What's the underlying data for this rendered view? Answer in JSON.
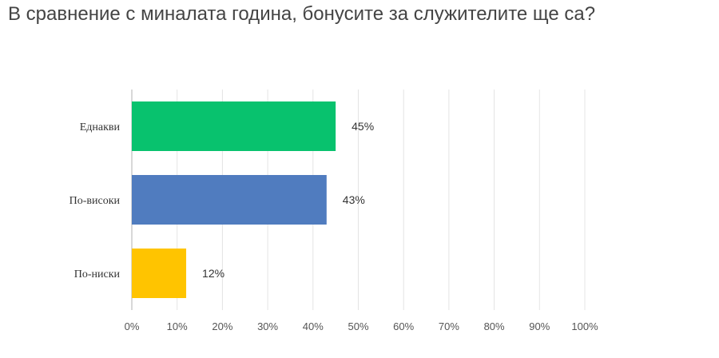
{
  "title": "В сравнение с миналата година, бонусите за служителите ще са?",
  "chart_data": {
    "type": "bar",
    "orientation": "horizontal",
    "categories": [
      "Еднакви",
      "По-високи",
      "По-ниски"
    ],
    "values": [
      45,
      43,
      12
    ],
    "value_labels": [
      "45%",
      "43%",
      "12%"
    ],
    "colors": [
      "#08C26E",
      "#507CBF",
      "#FFC400"
    ],
    "xlim": [
      0,
      100
    ],
    "x_ticks": [
      "0%",
      "10%",
      "20%",
      "30%",
      "40%",
      "50%",
      "60%",
      "70%",
      "80%",
      "90%",
      "100%"
    ],
    "grid": true
  }
}
